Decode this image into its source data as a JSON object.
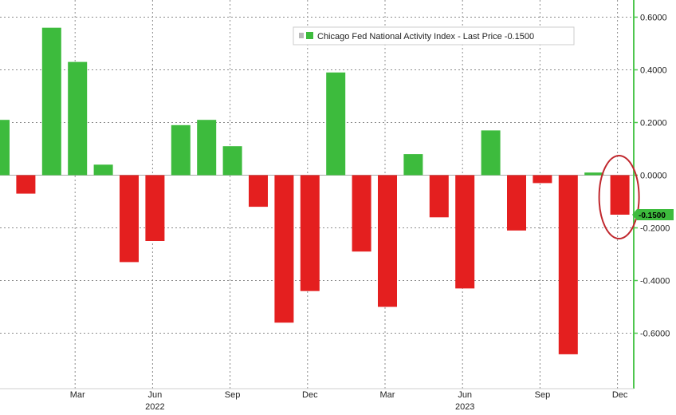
{
  "chart_data": {
    "type": "bar",
    "legend": {
      "label": "Chicago Fed National Activity Index - Last Price -0.1500",
      "placement": "top-center"
    },
    "series": [
      {
        "name": "Chicago Fed National Activity Index",
        "values": [
          0.21,
          -0.07,
          0.56,
          0.43,
          0.04,
          -0.33,
          -0.25,
          0.19,
          0.21,
          0.11,
          -0.12,
          -0.56,
          -0.44,
          0.39,
          -0.29,
          -0.5,
          0.08,
          -0.16,
          -0.43,
          0.17,
          -0.21,
          -0.03,
          -0.68,
          0.01,
          -0.15
        ]
      }
    ],
    "categories": [
      "Dec 2021",
      "Jan 2022",
      "Feb 2022",
      "Mar 2022",
      "Apr 2022",
      "May 2022",
      "Jun 2022",
      "Jul 2022",
      "Aug 2022",
      "Sep 2022",
      "Oct 2022",
      "Nov 2022",
      "Dec 2022",
      "Jan 2023",
      "Feb 2023",
      "Mar 2023",
      "Apr 2023",
      "May 2023",
      "Jun 2023",
      "Jul 2023",
      "Aug 2023",
      "Sep 2023",
      "Oct 2023",
      "Nov 2023",
      "Dec 2023"
    ],
    "y_ticks": [
      {
        "value": 0.6,
        "label": "0.6000"
      },
      {
        "value": 0.4,
        "label": "0.4000"
      },
      {
        "value": 0.2,
        "label": "0.2000"
      },
      {
        "value": 0.0,
        "label": "0.0000"
      },
      {
        "value": -0.2,
        "label": "-0.2000"
      },
      {
        "value": -0.4,
        "label": "-0.4000"
      },
      {
        "value": -0.6,
        "label": "-0.6000"
      }
    ],
    "x_ticks": [
      {
        "index": 3,
        "label": "Mar"
      },
      {
        "index": 6,
        "label": "Jun"
      },
      {
        "index": 9,
        "label": "Sep"
      },
      {
        "index": 12,
        "label": "Dec"
      },
      {
        "index": 15,
        "label": "Mar"
      },
      {
        "index": 18,
        "label": "Jun"
      },
      {
        "index": 21,
        "label": "Sep"
      },
      {
        "index": 24,
        "label": "Dec"
      }
    ],
    "year_labels": [
      {
        "index": 6,
        "label": "2022"
      },
      {
        "index": 18,
        "label": "2023"
      }
    ],
    "last_price": {
      "value": -0.15,
      "label": "-0.1500"
    },
    "highlight": {
      "index": 24,
      "description_shape": "ellipse"
    },
    "ylim": [
      -0.9,
      0.66
    ],
    "grid": true,
    "colors": {
      "positive": "#3dbb3d",
      "negative": "#e41f1f",
      "axis_right": "#4fc64f",
      "highlight_ring": "#c0272d",
      "last_price_tag": "#3dbb3d"
    }
  }
}
